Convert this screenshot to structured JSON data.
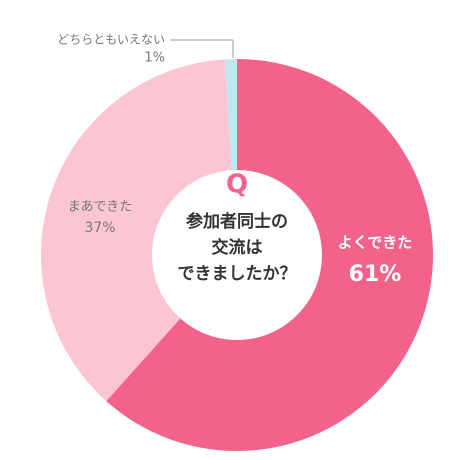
{
  "chart_data": {
    "type": "donut",
    "center_label": "Q",
    "title_lines": [
      "参加者同士の",
      "交流は",
      "できましたか？"
    ],
    "categories": [
      "よくできた",
      "まあできた",
      "どちらともいえない"
    ],
    "values": [
      61,
      37,
      1
    ],
    "value_labels": [
      "61%",
      "37%",
      "1%"
    ],
    "colors": [
      "#f2628b",
      "#fbc5d4",
      "#c4e4ef"
    ]
  }
}
